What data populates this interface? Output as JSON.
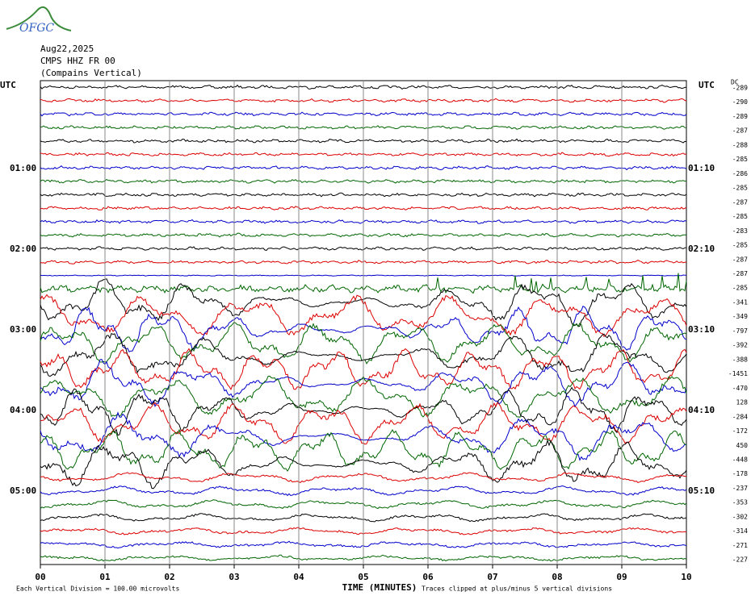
{
  "logo": "OFGC",
  "header": {
    "date": "Aug22,2025",
    "station": "CMPS HHZ FR 00",
    "component": "(Compains Vertical)"
  },
  "left_axis": {
    "title": "UTC",
    "labels": [
      "01:00",
      "02:00",
      "03:00",
      "04:00",
      "05:00"
    ]
  },
  "right_axis": {
    "title": "UTC",
    "labels": [
      "01:10",
      "02:10",
      "03:10",
      "04:10",
      "05:10"
    ]
  },
  "dc": {
    "title": "DC",
    "values": [
      -289,
      -290,
      -289,
      -287,
      -288,
      -285,
      -286,
      -285,
      -287,
      -285,
      -283,
      -285,
      -287,
      -287,
      -285,
      -341,
      -349,
      -797,
      -392,
      -388,
      -1451,
      -470,
      128,
      -284,
      -172,
      450,
      -448,
      -178,
      -237,
      -353,
      -302,
      -314,
      -271,
      -227
    ]
  },
  "x_axis": {
    "labels": [
      "00",
      "01",
      "02",
      "03",
      "04",
      "05",
      "06",
      "07",
      "08",
      "09",
      "10"
    ],
    "title": "TIME (MINUTES)"
  },
  "footer": {
    "scale": "Each Vertical Division =  100.00 microvolts",
    "clip": "Traces clipped at plus/minus 5 vertical divisions"
  }
}
